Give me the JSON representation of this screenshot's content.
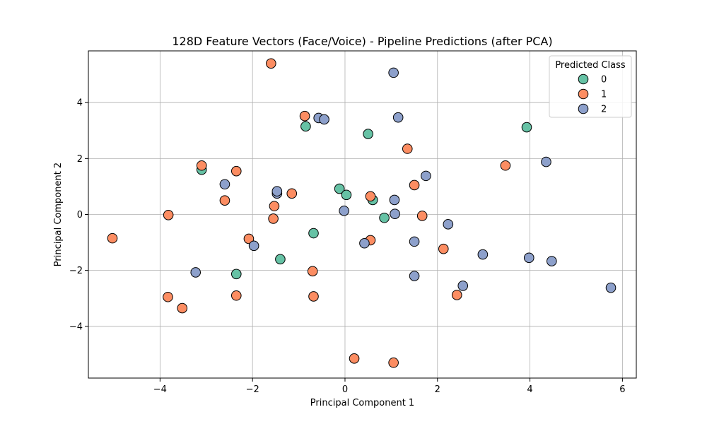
{
  "chart_data": {
    "type": "scatter",
    "title": "128D Feature Vectors (Face/Voice) - Pipeline Predictions (after PCA)",
    "xlabel": "Principal Component 1",
    "ylabel": "Principal Component 2",
    "xlim": [
      -5.55,
      6.3
    ],
    "ylim": [
      -5.85,
      5.85
    ],
    "xticks": [
      -4,
      -2,
      0,
      2,
      4,
      6
    ],
    "yticks": [
      -4,
      -2,
      0,
      2,
      4
    ],
    "grid": true,
    "legend": {
      "title": "Predicted Class",
      "placement": "top-right"
    },
    "series": [
      {
        "name": "0",
        "color": "#66c2a5",
        "points": [
          [
            -3.1,
            1.6
          ],
          [
            -0.85,
            3.15
          ],
          [
            0.5,
            2.88
          ],
          [
            3.93,
            3.12
          ],
          [
            -0.12,
            0.92
          ],
          [
            0.03,
            0.7
          ],
          [
            0.6,
            0.52
          ],
          [
            0.85,
            -0.12
          ],
          [
            -0.68,
            -0.67
          ],
          [
            -1.4,
            -1.6
          ],
          [
            -2.35,
            -2.13
          ]
        ]
      },
      {
        "name": "1",
        "color": "#fc8d62",
        "points": [
          [
            -1.6,
            5.4
          ],
          [
            -0.87,
            3.52
          ],
          [
            1.35,
            2.35
          ],
          [
            -3.1,
            1.75
          ],
          [
            -2.35,
            1.55
          ],
          [
            3.47,
            1.75
          ],
          [
            1.5,
            1.05
          ],
          [
            -1.15,
            0.75
          ],
          [
            0.55,
            0.65
          ],
          [
            -2.6,
            0.5
          ],
          [
            -1.53,
            0.3
          ],
          [
            -3.82,
            -0.02
          ],
          [
            -1.55,
            -0.15
          ],
          [
            1.67,
            -0.05
          ],
          [
            -5.03,
            -0.85
          ],
          [
            -2.08,
            -0.87
          ],
          [
            0.55,
            -0.92
          ],
          [
            2.13,
            -1.23
          ],
          [
            -0.7,
            -2.03
          ],
          [
            -2.35,
            -2.9
          ],
          [
            -3.83,
            -2.95
          ],
          [
            -0.68,
            -2.93
          ],
          [
            2.42,
            -2.88
          ],
          [
            -3.52,
            -3.35
          ],
          [
            0.2,
            -5.15
          ],
          [
            1.05,
            -5.3
          ]
        ]
      },
      {
        "name": "2",
        "color": "#8da0cb",
        "points": [
          [
            1.05,
            5.07
          ],
          [
            -0.57,
            3.45
          ],
          [
            -0.45,
            3.4
          ],
          [
            1.15,
            3.47
          ],
          [
            4.35,
            1.88
          ],
          [
            1.75,
            1.38
          ],
          [
            -2.6,
            1.08
          ],
          [
            -1.47,
            0.75
          ],
          [
            -1.47,
            0.83
          ],
          [
            1.07,
            0.52
          ],
          [
            -0.02,
            0.13
          ],
          [
            1.08,
            0.02
          ],
          [
            2.23,
            -0.35
          ],
          [
            0.42,
            -1.03
          ],
          [
            -1.97,
            -1.12
          ],
          [
            1.5,
            -0.97
          ],
          [
            2.98,
            -1.43
          ],
          [
            3.98,
            -1.55
          ],
          [
            4.47,
            -1.67
          ],
          [
            -3.23,
            -2.07
          ],
          [
            1.5,
            -2.2
          ],
          [
            2.55,
            -2.55
          ],
          [
            5.75,
            -2.62
          ]
        ]
      }
    ]
  }
}
